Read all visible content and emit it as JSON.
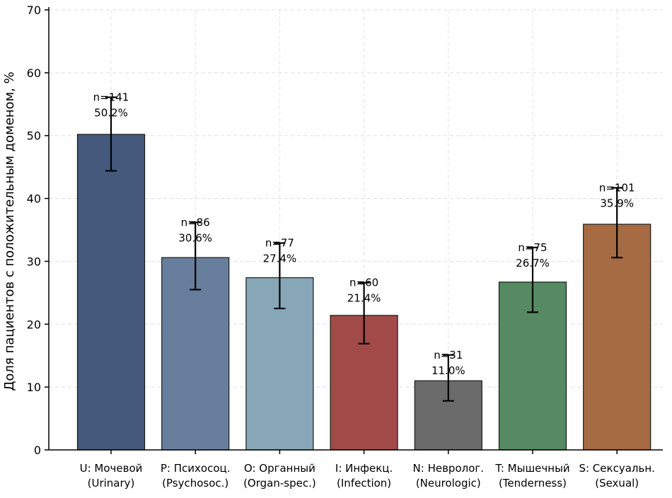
{
  "chart_data": {
    "type": "bar",
    "title": "",
    "xlabel": "",
    "ylabel": "Доля пациентов с положительным доменом, %",
    "ylim": [
      0,
      70
    ],
    "yticks": [
      0,
      10,
      20,
      30,
      40,
      50,
      60,
      70
    ],
    "grid": true,
    "categories": [
      [
        "U: Мочевой",
        "(Urinary)"
      ],
      [
        "P: Психосоц.",
        "(Psychosoc.)"
      ],
      [
        "O: Органный",
        "(Organ-spec.)"
      ],
      [
        "I: Инфекц.",
        "(Infection)"
      ],
      [
        "N: Невролог.",
        "(Neurologic)"
      ],
      [
        "T: Мышечный",
        "(Tenderness)"
      ],
      [
        "S: Сексуальн.",
        "(Sexual)"
      ]
    ],
    "values": [
      50.2,
      30.6,
      27.4,
      21.4,
      11.0,
      26.7,
      35.9
    ],
    "error_low": [
      44.4,
      25.5,
      22.5,
      16.9,
      7.8,
      21.9,
      30.6
    ],
    "error_high": [
      56.1,
      36.2,
      32.9,
      26.6,
      15.1,
      32.2,
      41.7
    ],
    "counts": [
      "n=141",
      "n=86",
      "n=77",
      "n=60",
      "n=31",
      "n=75",
      "n=101"
    ],
    "percent_labels": [
      "50.2%",
      "30.6%",
      "27.4%",
      "21.4%",
      "11.0%",
      "26.7%",
      "35.9%"
    ],
    "colors": [
      "#44597b",
      "#677f9d",
      "#87a7b8",
      "#a14a47",
      "#6b6b6b",
      "#558a63",
      "#a66b42"
    ]
  }
}
